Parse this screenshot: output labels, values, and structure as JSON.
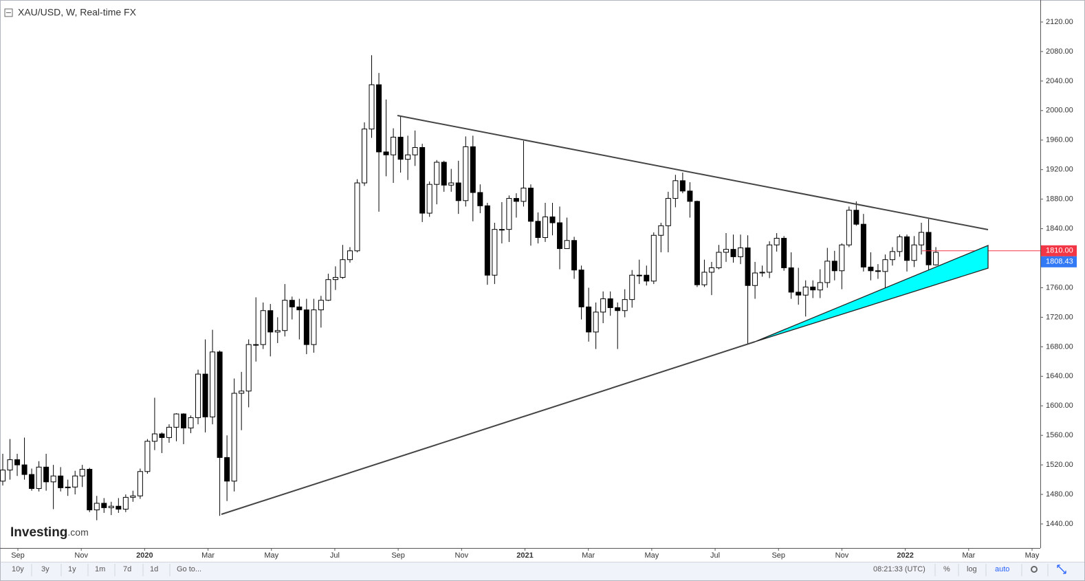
{
  "chart_data": {
    "type": "candlestick",
    "title": "XAU/USD, W, Real-time FX",
    "watermark": {
      "brand": "Investing",
      "suffix": ".com"
    },
    "up_color": "#ffffff",
    "down_color": "#000000",
    "xticks": [
      "Sep",
      "Nov",
      "2020",
      "Mar",
      "May",
      "Jul",
      "Sep",
      "Nov",
      "2021",
      "Mar",
      "May",
      "Jul",
      "Sep",
      "Nov",
      "2022",
      "Mar",
      "May"
    ],
    "open": [
      1498,
      1513,
      1527,
      1520,
      1507,
      1488,
      1517,
      1497,
      1505,
      1489,
      1490,
      1505,
      1514,
      1459,
      1468,
      1462,
      1464,
      1460,
      1476,
      1478,
      1511,
      1552,
      1562,
      1557,
      1571,
      1589,
      1570,
      1584,
      1643,
      1585,
      1673,
      1530,
      1498,
      1617,
      1620,
      1683,
      1683,
      1729,
      1700,
      1702,
      1743,
      1734,
      1730,
      1683,
      1730,
      1743,
      1771,
      1774,
      1798,
      1810,
      1902,
      1975,
      2035,
      1944,
      1940,
      1964,
      1934,
      1940,
      1950,
      1861,
      1900,
      1930,
      1899,
      1902,
      1878,
      1951,
      1889,
      1871,
      1777,
      1839,
      1839,
      1881,
      1877,
      1895,
      1850,
      1828,
      1856,
      1848,
      1813,
      1824,
      1784,
      1734,
      1700,
      1727,
      1745,
      1733,
      1729,
      1744,
      1777,
      1777,
      1769,
      1831,
      1844,
      1881,
      1905,
      1891,
      1877,
      1764,
      1781,
      1787,
      1808,
      1812,
      1802,
      1814,
      1763,
      1780,
      1781,
      1818,
      1827,
      1787,
      1754,
      1750,
      1761,
      1757,
      1767,
      1796,
      1783,
      1818,
      1865,
      1846,
      1788,
      1783,
      1782,
      1798,
      1809,
      1829,
      1797,
      1818,
      1835,
      1791
    ],
    "high": [
      1535,
      1555,
      1535,
      1557,
      1515,
      1525,
      1535,
      1520,
      1517,
      1500,
      1512,
      1520,
      1516,
      1478,
      1475,
      1470,
      1475,
      1480,
      1485,
      1515,
      1555,
      1611,
      1564,
      1575,
      1590,
      1590,
      1587,
      1649,
      1690,
      1703,
      1675,
      1560,
      1637,
      1646,
      1690,
      1747,
      1740,
      1738,
      1720,
      1765,
      1748,
      1745,
      1745,
      1745,
      1749,
      1779,
      1789,
      1818,
      1815,
      1907,
      1984,
      2075,
      2051,
      2015,
      1976,
      1992,
      1966,
      1973,
      1955,
      1904,
      1933,
      1932,
      1921,
      1932,
      1965,
      1966,
      1900,
      1875,
      1848,
      1876,
      1885,
      1888,
      1959,
      1900,
      1862,
      1875,
      1875,
      1870,
      1855,
      1829,
      1790,
      1760,
      1740,
      1755,
      1755,
      1740,
      1758,
      1784,
      1798,
      1790,
      1835,
      1848,
      1890,
      1913,
      1916,
      1903,
      1878,
      1798,
      1795,
      1818,
      1834,
      1832,
      1832,
      1831,
      1795,
      1790,
      1823,
      1834,
      1830,
      1808,
      1787,
      1770,
      1770,
      1785,
      1814,
      1810,
      1820,
      1870,
      1877,
      1860,
      1808,
      1792,
      1805,
      1815,
      1832,
      1832,
      1830,
      1848,
      1853,
      1815
    ],
    "low": [
      1492,
      1500,
      1505,
      1500,
      1485,
      1484,
      1485,
      1460,
      1484,
      1478,
      1480,
      1490,
      1456,
      1445,
      1455,
      1452,
      1455,
      1456,
      1470,
      1474,
      1508,
      1540,
      1536,
      1550,
      1552,
      1548,
      1563,
      1575,
      1564,
      1575,
      1451,
      1471,
      1484,
      1567,
      1598,
      1660,
      1677,
      1667,
      1685,
      1694,
      1717,
      1690,
      1670,
      1672,
      1706,
      1742,
      1757,
      1772,
      1794,
      1808,
      1898,
      1963,
      1863,
      1911,
      1902,
      1916,
      1906,
      1925,
      1849,
      1856,
      1873,
      1890,
      1890,
      1860,
      1870,
      1850,
      1861,
      1764,
      1765,
      1820,
      1822,
      1855,
      1870,
      1817,
      1820,
      1822,
      1831,
      1785,
      1815,
      1772,
      1717,
      1687,
      1677,
      1712,
      1722,
      1677,
      1720,
      1733,
      1765,
      1763,
      1765,
      1808,
      1808,
      1869,
      1888,
      1855,
      1761,
      1761,
      1750,
      1785,
      1795,
      1794,
      1792,
      1684,
      1745,
      1775,
      1773,
      1809,
      1783,
      1745,
      1737,
      1721,
      1746,
      1746,
      1760,
      1770,
      1758,
      1815,
      1844,
      1782,
      1770,
      1772,
      1753,
      1790,
      1802,
      1782,
      1788,
      1805,
      1780,
      1790
    ],
    "close": [
      1513,
      1527,
      1520,
      1507,
      1488,
      1517,
      1497,
      1505,
      1489,
      1490,
      1505,
      1514,
      1459,
      1468,
      1462,
      1464,
      1460,
      1476,
      1478,
      1511,
      1552,
      1562,
      1557,
      1571,
      1589,
      1570,
      1584,
      1643,
      1585,
      1673,
      1530,
      1498,
      1617,
      1620,
      1683,
      1683,
      1729,
      1700,
      1702,
      1743,
      1734,
      1730,
      1683,
      1730,
      1743,
      1771,
      1774,
      1798,
      1810,
      1902,
      1975,
      2035,
      1944,
      1940,
      1964,
      1934,
      1940,
      1950,
      1861,
      1900,
      1930,
      1899,
      1902,
      1878,
      1951,
      1889,
      1871,
      1777,
      1839,
      1839,
      1881,
      1877,
      1895,
      1850,
      1828,
      1856,
      1848,
      1813,
      1824,
      1784,
      1734,
      1700,
      1727,
      1745,
      1733,
      1729,
      1744,
      1777,
      1777,
      1769,
      1831,
      1844,
      1881,
      1905,
      1891,
      1877,
      1764,
      1781,
      1787,
      1808,
      1812,
      1802,
      1814,
      1763,
      1780,
      1781,
      1818,
      1827,
      1787,
      1754,
      1750,
      1761,
      1757,
      1767,
      1796,
      1783,
      1818,
      1865,
      1846,
      1788,
      1783,
      1782,
      1798,
      1809,
      1829,
      1797,
      1818,
      1835,
      1791,
      1808
    ],
    "ylim": [
      1407.4,
      2149.8
    ],
    "yticks": [
      {
        "value": 1440,
        "label": "1440.00"
      },
      {
        "value": 1480,
        "label": "1480.00"
      },
      {
        "value": 1520,
        "label": "1520.00"
      },
      {
        "value": 1560,
        "label": "1560.00"
      },
      {
        "value": 1600,
        "label": "1600.00"
      },
      {
        "value": 1640,
        "label": "1640.00"
      },
      {
        "value": 1680,
        "label": "1680.00"
      },
      {
        "value": 1720,
        "label": "1720.00"
      },
      {
        "value": 1760,
        "label": "1760.00"
      },
      {
        "value": 1800,
        "label": "1800.00"
      },
      {
        "value": 1840,
        "label": "1840.00"
      },
      {
        "value": 1880,
        "label": "1880.00"
      },
      {
        "value": 1920,
        "label": "1920.00"
      },
      {
        "value": 1960,
        "label": "1960.00"
      },
      {
        "value": 2000,
        "label": "2000.00"
      },
      {
        "value": 2040,
        "label": "2040.00"
      },
      {
        "value": 2080,
        "label": "2080.00"
      },
      {
        "value": 2120,
        "label": "2120.00"
      }
    ],
    "price_labels": [
      {
        "value": 1810,
        "label": "1810.00",
        "color": "#f23645"
      },
      {
        "value": 1808.43,
        "label": "1808.43",
        "color": "#3179f5"
      }
    ]
  },
  "toolbar": {
    "ranges": [
      "10y",
      "3y",
      "1y",
      "1m",
      "7d",
      "1d"
    ],
    "goto": "Go to...",
    "time": "08:21:33 (UTC)",
    "percent": "%",
    "log": "log",
    "auto": "auto"
  }
}
